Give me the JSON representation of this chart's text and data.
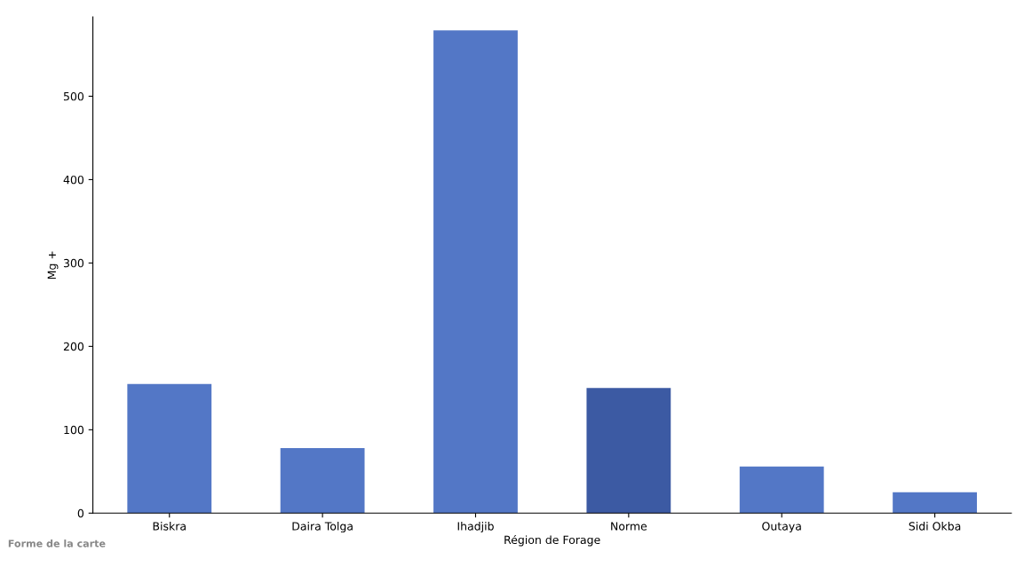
{
  "chart_data": {
    "type": "bar",
    "xlabel": "Région de Forage",
    "ylabel": "Mg +",
    "categories": [
      "Biskra",
      "Daira Tolga",
      "Ihadjib",
      "Norme",
      "Outaya",
      "Sidi Okba"
    ],
    "values": [
      155,
      78,
      579,
      150,
      56,
      25
    ],
    "colors": [
      "#5377c6",
      "#5377c6",
      "#5377c6",
      "#3c5aa3",
      "#5377c6",
      "#5377c6"
    ],
    "ylim": [
      0,
      595
    ],
    "yticks": [
      0,
      100,
      200,
      300,
      400,
      500
    ],
    "grid": false,
    "legend": false,
    "annotations": [
      "Forme de la carte"
    ]
  }
}
